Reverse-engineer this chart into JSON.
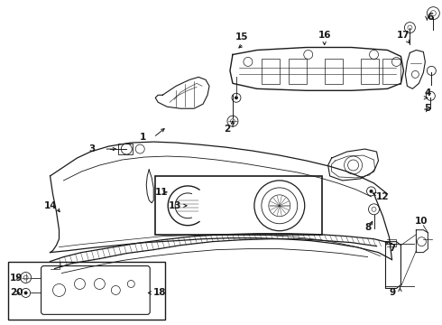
{
  "bg_color": "#ffffff",
  "fig_width": 4.9,
  "fig_height": 3.6,
  "dpi": 100,
  "line_color": "#1a1a1a",
  "label_fontsize": 7.5
}
